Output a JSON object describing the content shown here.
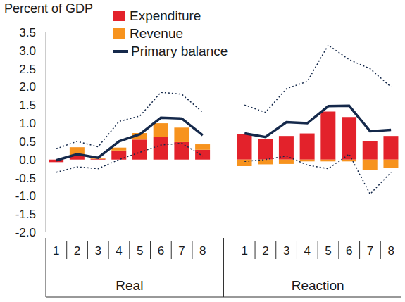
{
  "chart_data": {
    "type": "bar",
    "y_label": "Percent of GDP",
    "group_labels": [
      "Real",
      "Reaction"
    ],
    "categories": [
      "1",
      "2",
      "3",
      "4",
      "5",
      "6",
      "7",
      "8",
      null,
      "1",
      "2",
      "3",
      "4",
      "5",
      "6",
      "7",
      "8"
    ],
    "stacked": true,
    "legend": "top",
    "ylim": [
      -2,
      3.5
    ],
    "yticks": [
      {
        "value": -2,
        "label": "-2.0"
      },
      -1.5,
      {
        "value": -1,
        "label": "-1.0"
      },
      -0.5,
      {
        "value": 0,
        "label": "0.0"
      },
      0.5,
      {
        "value": 1,
        "label": "1.0"
      },
      1.5,
      {
        "value": 2,
        "label": "2.0"
      },
      2.5,
      {
        "value": 3,
        "label": "3.0"
      },
      3.5
    ],
    "grid": false,
    "series": [
      {
        "name": "Expenditure",
        "type": "bar",
        "color": "#e3222b",
        "values": [
          -0.07,
          0.12,
          0.02,
          0.25,
          0.55,
          0.62,
          0.48,
          0.27,
          null,
          0.7,
          0.57,
          0.65,
          0.72,
          1.32,
          1.17,
          0.5,
          0.65
        ]
      },
      {
        "name": "Revenue",
        "type": "bar",
        "color": "#f7931e",
        "values": [
          0,
          0.22,
          0.03,
          0.08,
          0.18,
          0.38,
          0.4,
          0.15,
          null,
          -0.18,
          -0.13,
          -0.12,
          -0.05,
          -0.05,
          -0.05,
          -0.28,
          -0.22
        ]
      },
      {
        "name": "Primary balance",
        "type": "line",
        "color": "#15294b",
        "marker": "none",
        "line_style": "solid",
        "values": [
          -0.02,
          0.15,
          0.05,
          0.5,
          0.7,
          1.15,
          1.13,
          0.67,
          null,
          0.72,
          0.62,
          1.03,
          1.0,
          1.47,
          1.48,
          0.78,
          0.82
        ],
        "upper": [
          0.3,
          0.5,
          0.35,
          1.05,
          1.2,
          1.85,
          1.8,
          1.3,
          null,
          1.5,
          1.3,
          1.95,
          2.15,
          3.15,
          2.75,
          2.5,
          2.0
        ],
        "lower": [
          -0.35,
          -0.2,
          -0.25,
          0.0,
          0.2,
          0.4,
          0.45,
          0.1,
          null,
          -0.05,
          0.0,
          0.1,
          -0.15,
          -0.25,
          0.15,
          -0.95,
          -0.35
        ]
      }
    ]
  }
}
